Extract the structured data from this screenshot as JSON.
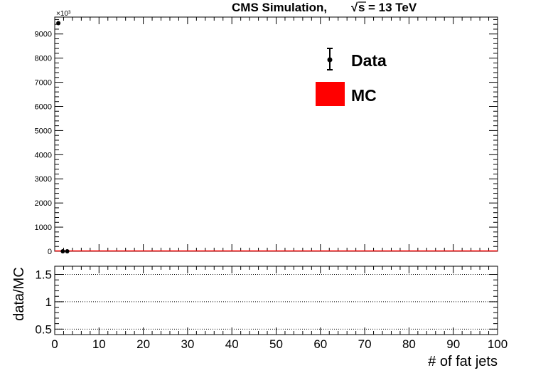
{
  "header": {
    "title_prefix": "CMS Simulation,",
    "title_suffix": "= 13 TeV",
    "sqrt_symbol": "√",
    "s_symbol": "s"
  },
  "top_panel": {
    "exponent_label": "×10³",
    "legend": {
      "data_label": "Data",
      "mc_label": "MC"
    }
  },
  "bottom_panel": {
    "ylabel": "data/MC",
    "xlabel": "# of fat jets"
  },
  "colors": {
    "mc_fill": "#ff0000",
    "data_marker": "#000000"
  },
  "chart_data": [
    {
      "type": "scatter",
      "x_range": [
        0,
        100
      ],
      "ylim": [
        0,
        9700
      ],
      "y_scale_note": "×10³",
      "y_ticks": [
        0,
        1000,
        2000,
        3000,
        4000,
        5000,
        6000,
        7000,
        8000,
        9000
      ],
      "y_tick_labels": [
        "0",
        "1000",
        "2000",
        "3000",
        "4000",
        "5000",
        "6000",
        "7000",
        "8000",
        "9000"
      ],
      "series": [
        {
          "name": "Data",
          "points": [
            [
              0.5,
              9450
            ],
            [
              1.5,
              0
            ],
            [
              2.5,
              0
            ]
          ]
        },
        {
          "name": "MC",
          "points": [
            [
              0.5,
              0
            ],
            [
              1.5,
              0
            ],
            [
              2.5,
              0
            ]
          ]
        }
      ],
      "legend_position": "top-right"
    },
    {
      "type": "line",
      "x_range": [
        0,
        100
      ],
      "ylim": [
        0.4,
        1.65
      ],
      "y_ticks": [
        0.5,
        1,
        1.5
      ],
      "y_tick_labels": [
        "0.5",
        "1",
        "1.5"
      ],
      "x_ticks": [
        0,
        10,
        20,
        30,
        40,
        50,
        60,
        70,
        80,
        90,
        100
      ],
      "x_tick_labels": [
        "0",
        "10",
        "20",
        "30",
        "40",
        "50",
        "60",
        "70",
        "80",
        "90",
        "100"
      ],
      "reference_lines": [
        0.5,
        1.0,
        1.5
      ],
      "xlabel": "# of fat jets",
      "ylabel": "data/MC"
    }
  ]
}
